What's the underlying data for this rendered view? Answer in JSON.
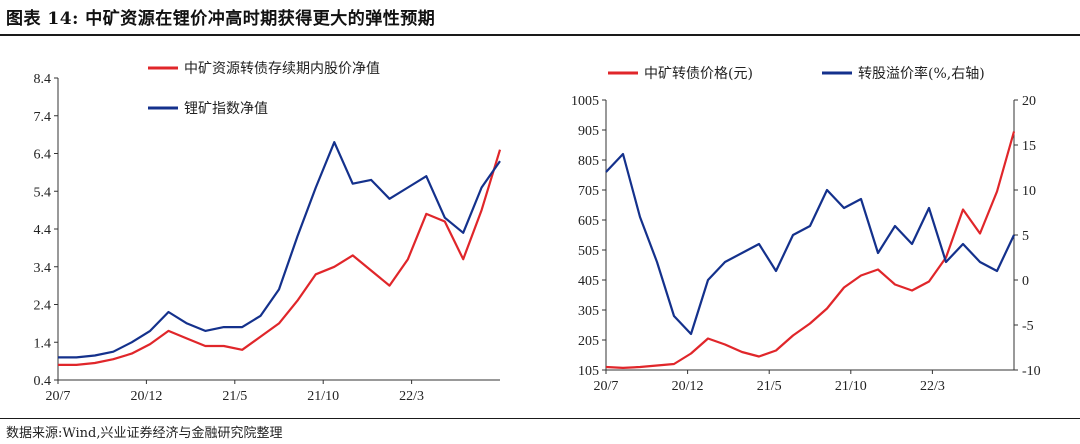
{
  "figure": {
    "title": "图表 14:  中矿资源在锂价冲高时期获得更大的弹性预期",
    "source": "数据来源:Wind,兴业证券经济与金融研究院整理"
  },
  "colors": {
    "red": "#e0262a",
    "blue": "#14318c"
  },
  "chart_data": [
    {
      "type": "line",
      "title": "",
      "xlabel": "",
      "ylabel": "",
      "ylim": [
        0.4,
        8.4
      ],
      "yticks": [
        "8.4",
        "7.4",
        "6.4",
        "5.4",
        "4.4",
        "3.4",
        "2.4",
        "1.4",
        "0.4"
      ],
      "xticks": [
        "20/7",
        "20/12",
        "21/5",
        "21/10",
        "22/3"
      ],
      "legend_position": "top-left",
      "grid": false,
      "x": [
        "2020-07",
        "2020-08",
        "2020-09",
        "2020-10",
        "2020-11",
        "2020-12",
        "2021-01",
        "2021-02",
        "2021-03",
        "2021-04",
        "2021-05",
        "2021-06",
        "2021-07",
        "2021-08",
        "2021-09",
        "2021-10",
        "2021-11",
        "2021-12",
        "2022-01",
        "2022-02",
        "2022-03",
        "2022-04",
        "2022-05",
        "2022-06",
        "2022-07"
      ],
      "series": [
        {
          "name": "中矿资源转债存续期内股价净值",
          "color": "#e0262a",
          "values": [
            0.8,
            0.8,
            0.85,
            0.95,
            1.1,
            1.35,
            1.7,
            1.5,
            1.3,
            1.3,
            1.2,
            1.55,
            1.9,
            2.5,
            3.2,
            3.4,
            3.7,
            3.3,
            2.9,
            3.6,
            4.8,
            4.6,
            3.6,
            4.9,
            6.5
          ]
        },
        {
          "name": "锂矿指数净值",
          "color": "#14318c",
          "values": [
            1.0,
            1.0,
            1.05,
            1.15,
            1.4,
            1.7,
            2.2,
            1.9,
            1.7,
            1.8,
            1.8,
            2.1,
            2.8,
            4.2,
            5.5,
            6.7,
            5.6,
            5.7,
            5.2,
            5.5,
            5.8,
            4.7,
            4.3,
            5.5,
            6.2
          ]
        }
      ]
    },
    {
      "type": "line",
      "title": "",
      "xlabel": "",
      "ylabel": "",
      "ylim": [
        105,
        1005
      ],
      "y2lim": [
        -10,
        20
      ],
      "yticks": [
        "1005",
        "905",
        "805",
        "705",
        "605",
        "505",
        "405",
        "305",
        "205",
        "105"
      ],
      "y2ticks": [
        "20",
        "15",
        "10",
        "5",
        "0",
        "-5",
        "-10"
      ],
      "xticks": [
        "20/7",
        "20/12",
        "21/5",
        "21/10",
        "22/3"
      ],
      "legend_position": "top",
      "grid": false,
      "x": [
        "2020-07",
        "2020-08",
        "2020-09",
        "2020-10",
        "2020-11",
        "2020-12",
        "2021-01",
        "2021-02",
        "2021-03",
        "2021-04",
        "2021-05",
        "2021-06",
        "2021-07",
        "2021-08",
        "2021-09",
        "2021-10",
        "2021-11",
        "2021-12",
        "2022-01",
        "2022-02",
        "2022-03",
        "2022-04",
        "2022-05",
        "2022-06",
        "2022-07"
      ],
      "series": [
        {
          "name": "中矿转债价格(元)",
          "axis": "left",
          "color": "#e0262a",
          "values": [
            115,
            112,
            115,
            120,
            125,
            160,
            210,
            190,
            165,
            150,
            170,
            220,
            260,
            310,
            380,
            420,
            440,
            390,
            370,
            400,
            480,
            640,
            560,
            700,
            900
          ]
        },
        {
          "name": "转股溢价率(%,右轴)",
          "axis": "right",
          "color": "#14318c",
          "values": [
            12,
            14,
            7,
            2,
            -4,
            -6,
            0,
            2,
            3,
            4,
            1,
            5,
            6,
            10,
            8,
            9,
            3,
            6,
            4,
            8,
            2,
            4,
            2,
            1,
            5
          ]
        }
      ]
    }
  ]
}
